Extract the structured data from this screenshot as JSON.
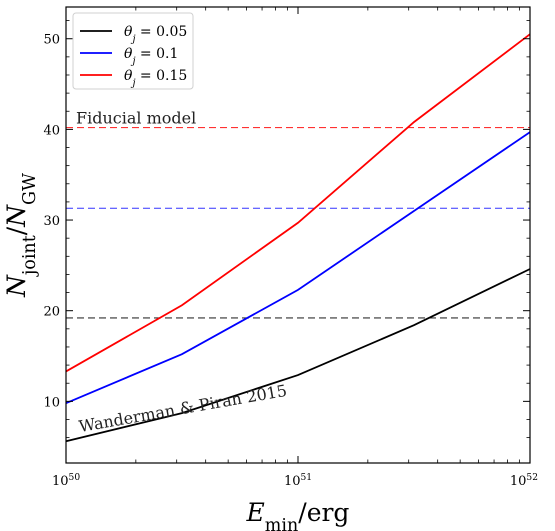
{
  "chart_data": {
    "type": "line",
    "x": [
      1e+50,
      3.16e+50,
      1e+51,
      3.16e+51,
      1e+52
    ],
    "x_tick_labels": [
      "10^50",
      "10^51",
      "10^52"
    ],
    "x_ticks": [
      1e+50,
      1e+51,
      1e+52
    ],
    "xlabel": "E_min/erg",
    "ylabel": "N_joint/N_GW",
    "xscale": "log",
    "xlim": [
      1e+50,
      1e+52
    ],
    "ylim": [
      3.2,
      53.5
    ],
    "y_ticks": [
      10,
      20,
      30,
      40,
      50
    ],
    "series": [
      {
        "name": "θ_j = 0.05",
        "color": "#000000",
        "values": [
          5.6,
          8.7,
          12.9,
          18.4,
          24.6
        ]
      },
      {
        "name": "θ_j = 0.1",
        "color": "#0000ff",
        "values": [
          9.8,
          15.2,
          22.3,
          31.0,
          39.7
        ]
      },
      {
        "name": "θ_j = 0.15",
        "color": "#ff0000",
        "values": [
          13.3,
          20.6,
          29.7,
          40.8,
          50.5
        ]
      }
    ],
    "reference_lines": [
      {
        "y": 19.2,
        "color": "#000000",
        "style": "dashed"
      },
      {
        "y": 31.3,
        "color": "#0000ff",
        "style": "dashed"
      },
      {
        "y": 40.2,
        "color": "#ff0000",
        "style": "dashed"
      }
    ],
    "annotations": {
      "fiducial": "Fiducial model",
      "wanderman": "Wanderman & Piran 2015"
    },
    "legend": "top-left",
    "grid": false
  }
}
